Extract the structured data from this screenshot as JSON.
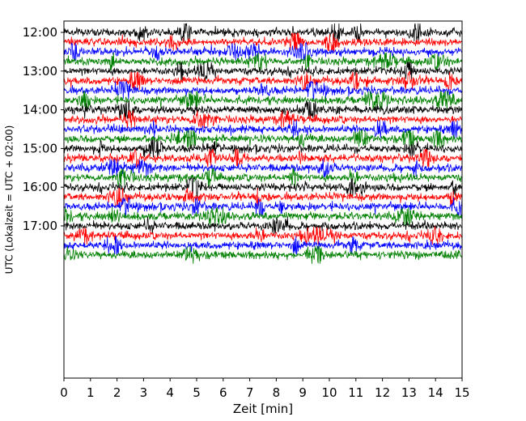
{
  "chart_data": {
    "type": "line",
    "title": "",
    "xlabel": "Zeit  [min]",
    "ylabel": "UTC (Lokalzeit = UTC + 02:00)",
    "xlim": [
      0,
      15
    ],
    "x_ticks": [
      "0",
      "1",
      "2",
      "3",
      "4",
      "5",
      "6",
      "7",
      "8",
      "9",
      "10",
      "11",
      "12",
      "13",
      "14",
      "15"
    ],
    "y_ticks": [
      "12:00",
      "13:00",
      "14:00",
      "15:00",
      "16:00",
      "17:00"
    ],
    "trace_interval_minutes": 15,
    "first_trace": "12:00",
    "last_trace": "17:45",
    "trace_count": 24,
    "color_cycle": [
      "#000000",
      "#ff0000",
      "#0000ff",
      "#008000"
    ],
    "grid": false,
    "legend": "none"
  }
}
